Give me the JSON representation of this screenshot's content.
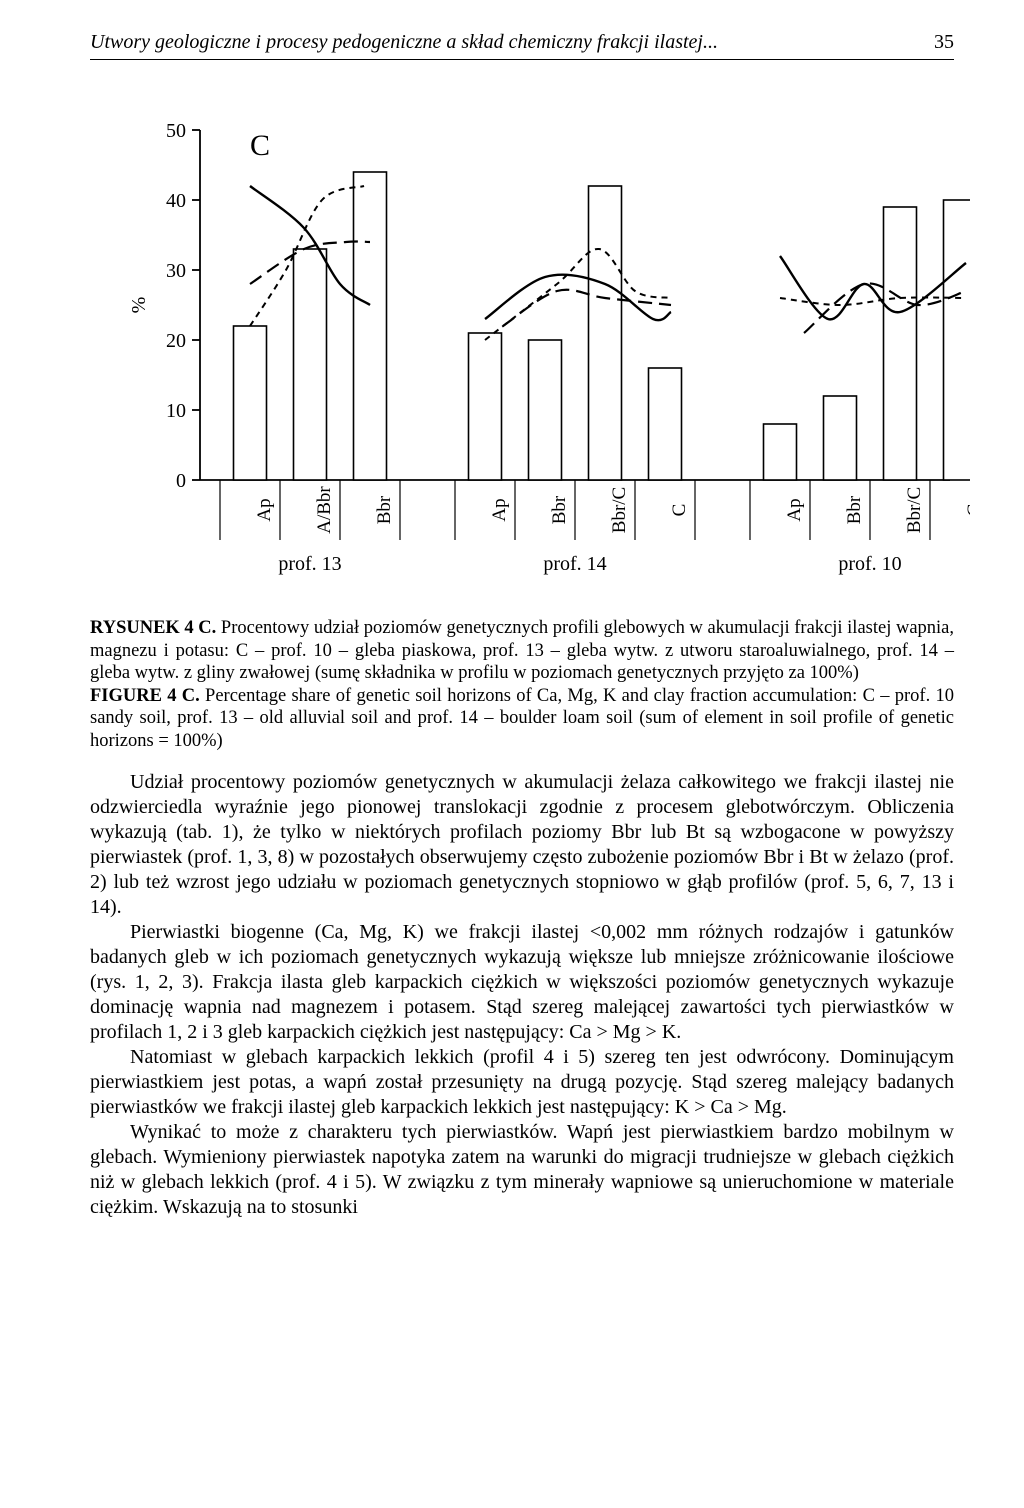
{
  "running_head": {
    "title": "Utwory geologiczne i procesy pedogeniczne a skład chemiczny frakcji ilastej...",
    "page_number": "35"
  },
  "chart": {
    "type": "bar+line",
    "panel_label": "C",
    "y_axis_label": "%",
    "ylim": [
      0,
      50
    ],
    "yticks": [
      0,
      10,
      20,
      30,
      40,
      50
    ],
    "tick_fontsize": 20,
    "bar_fill": "#ffffff",
    "bar_stroke": "#000000",
    "bar_stroke_width": 1.6,
    "axis_color": "#000000",
    "axis_width": 1.8,
    "line_solid_color": "#000000",
    "line_solid_width": 2.4,
    "line_dash_color": "#000000",
    "line_dash_width": 2.0,
    "line_dash_pattern": "6,5",
    "line_longdash_color": "#000000",
    "line_longdash_width": 2.2,
    "line_longdash_pattern": "14,7",
    "groups": [
      {
        "label": "prof. 13",
        "categories": [
          "Ap",
          "A/Bbr",
          "Bbr"
        ],
        "bar_values": [
          22,
          33,
          44
        ],
        "solid_curve": [
          [
            0,
            42
          ],
          [
            0.9,
            36
          ],
          [
            1.5,
            28
          ],
          [
            2.0,
            25
          ]
        ],
        "dash_curve": [
          [
            0,
            22
          ],
          [
            0.6,
            30
          ],
          [
            1.2,
            40
          ],
          [
            1.9,
            42
          ]
        ],
        "longdash_curve": [
          [
            0,
            28
          ],
          [
            0.9,
            33
          ],
          [
            1.6,
            34
          ],
          [
            2.0,
            34
          ]
        ]
      },
      {
        "label": "prof. 14",
        "categories": [
          "Ap",
          "Bbr",
          "Bbr/C",
          "C"
        ],
        "bar_values": [
          21,
          20,
          42,
          16
        ],
        "solid_curve": [
          [
            0,
            23
          ],
          [
            1.0,
            29
          ],
          [
            2.0,
            28
          ],
          [
            2.8,
            23
          ],
          [
            3.1,
            24
          ]
        ],
        "dash_curve": [
          [
            0,
            20
          ],
          [
            1.2,
            28
          ],
          [
            1.9,
            33
          ],
          [
            2.5,
            27
          ],
          [
            3.1,
            26
          ]
        ],
        "longdash_curve": [
          [
            0.3,
            22
          ],
          [
            1.2,
            27
          ],
          [
            2.0,
            26
          ],
          [
            3.1,
            25
          ]
        ]
      },
      {
        "label": "prof. 10",
        "categories": [
          "Ap",
          "Bbr",
          "Bbr/C",
          "C"
        ],
        "bar_values": [
          8,
          12,
          39,
          40
        ],
        "solid_curve": [
          [
            0,
            32
          ],
          [
            0.8,
            23
          ],
          [
            1.4,
            28
          ],
          [
            2.0,
            24
          ],
          [
            3.1,
            31
          ]
        ],
        "dash_curve": [
          [
            0,
            26
          ],
          [
            1.0,
            25
          ],
          [
            2.0,
            26
          ],
          [
            3.1,
            26
          ]
        ],
        "longdash_curve": [
          [
            0.4,
            21
          ],
          [
            1.4,
            28
          ],
          [
            2.3,
            25
          ],
          [
            3.1,
            27
          ]
        ]
      }
    ],
    "group_label_fontsize": 20,
    "category_label_fontsize": 19
  },
  "caption": {
    "pl_label": "RYSUNEK 4 C.",
    "pl_text": " Procentowy udział poziomów genetycznych profili glebowych w akumulacji frakcji ilastej wapnia, magnezu i potasu: C – prof. 10 – gleba piaskowa, prof. 13 – gleba wytw. z utworu staroaluwialnego, prof. 14 – gleba wytw. z gliny zwałowej (sumę składnika w profilu w poziomach genetycznych przyjęto za 100%)",
    "en_label": "FIGURE 4 C.",
    "en_text": " Percentage share of genetic soil horizons of Ca, Mg, K and clay fraction accumulation: C – prof. 10 sandy soil, prof. 13 – old alluvial soil and prof. 14 – boulder loam soil  (sum of element in soil profile of genetic horizons = 100%)"
  },
  "paragraphs": [
    "Udział procentowy poziomów genetycznych w akumulacji żelaza całkowitego we frakcji ilastej nie odzwierciedla wyraźnie jego pionowej translokacji zgodnie z procesem glebotwórczym. Obliczenia wykazują (tab. 1), że tylko w niektórych profilach poziomy Bbr lub Bt są wzbogacone w powyższy pierwiastek (prof. 1, 3, 8) w pozostałych obserwujemy często zubożenie poziomów Bbr i Bt w żelazo (prof. 2) lub też wzrost jego udziału w poziomach genetycznych stopniowo w głąb profilów (prof. 5, 6, 7, 13 i 14).",
    "Pierwiastki biogenne (Ca, Mg, K) we frakcji ilastej <0,002 mm różnych rodzajów i gatunków badanych gleb w ich poziomach genetycznych wykazują większe lub mniejsze zróżnicowanie ilościowe (rys. 1, 2, 3). Frakcja ilasta gleb karpackich ciężkich w większości poziomów genetycznych wykazuje dominację wapnia nad magnezem i potasem. Stąd szereg malejącej zawartości tych pierwiastków w profilach 1, 2 i 3 gleb karpackich ciężkich jest następujący: Ca > Mg > K.",
    "Natomiast w glebach karpackich lekkich (profil 4 i 5) szereg ten jest odwrócony. Dominującym pierwiastkiem jest potas, a wapń został przesunięty na drugą pozycję. Stąd szereg malejący badanych pierwiastków we frakcji ilastej gleb karpackich lekkich jest następujący: K > Ca > Mg.",
    "Wynikać to może z charakteru tych pierwiastków. Wapń jest pierwiastkiem bardzo mobilnym w glebach. Wymieniony pierwiastek napotyka zatem na warunki do migracji trudniejsze w glebach ciężkich niż w glebach lekkich (prof. 4 i 5). W związku z tym minerały wapniowe są unieruchomione w materiale ciężkim. Wskazują na to stosunki"
  ]
}
